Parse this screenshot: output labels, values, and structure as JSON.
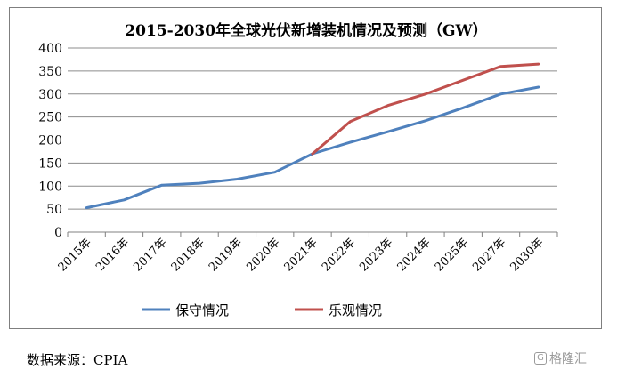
{
  "chart_data": {
    "type": "line",
    "title": "2015-2030年全球光伏新增装机情况及预测（GW）",
    "categories": [
      "2015年",
      "2016年",
      "2017年",
      "2018年",
      "2019年",
      "2020年",
      "2021年",
      "2022年",
      "2023年",
      "2024年",
      "2025年",
      "2027年",
      "2030年"
    ],
    "series": [
      {
        "name": "保守情况",
        "color": "#4f81bd",
        "values": [
          53,
          70,
          102,
          106,
          115,
          130,
          170,
          195,
          218,
          242,
          270,
          300,
          315
        ]
      },
      {
        "name": "乐观情况",
        "color": "#c0504d",
        "values": [
          null,
          null,
          null,
          null,
          null,
          null,
          170,
          240,
          275,
          300,
          330,
          360,
          365
        ]
      }
    ],
    "ylim": [
      0,
      400
    ],
    "yticks": [
      0,
      50,
      100,
      150,
      200,
      250,
      300,
      350,
      400
    ],
    "grid": true,
    "legend_position": "bottom"
  },
  "source_note": "数据来源：CPIA",
  "watermark": {
    "text": "格隆汇"
  }
}
